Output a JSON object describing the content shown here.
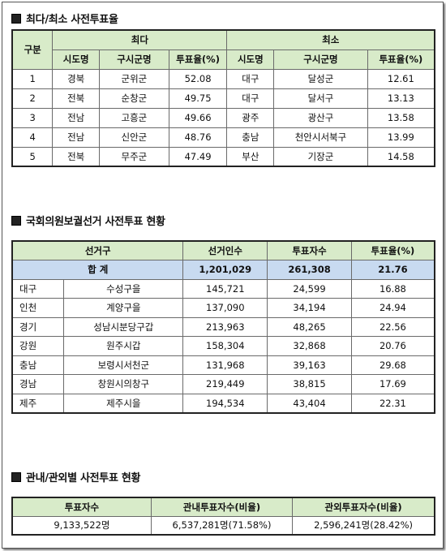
{
  "section1": {
    "title": "최다/최소 사전투표율",
    "col_category": "구분",
    "group_max": "최다",
    "group_min": "최소",
    "col_sido": "시도명",
    "col_sigungu": "구시군명",
    "col_rate": "투표율(%)",
    "rows": [
      {
        "rank": "1",
        "max_sido": "경북",
        "max_sigungu": "군위군",
        "max_rate": "52.08",
        "min_sido": "대구",
        "min_sigungu": "달성군",
        "min_rate": "12.61"
      },
      {
        "rank": "2",
        "max_sido": "전북",
        "max_sigungu": "순창군",
        "max_rate": "49.75",
        "min_sido": "대구",
        "min_sigungu": "달서구",
        "min_rate": "13.13"
      },
      {
        "rank": "3",
        "max_sido": "전남",
        "max_sigungu": "고흥군",
        "max_rate": "49.66",
        "min_sido": "광주",
        "min_sigungu": "광산구",
        "min_rate": "13.58"
      },
      {
        "rank": "4",
        "max_sido": "전남",
        "max_sigungu": "신안군",
        "max_rate": "48.76",
        "min_sido": "충남",
        "min_sigungu": "천안시서북구",
        "min_rate": "13.99"
      },
      {
        "rank": "5",
        "max_sido": "전북",
        "max_sigungu": "무주군",
        "max_rate": "47.49",
        "min_sido": "부산",
        "min_sigungu": "기장군",
        "min_rate": "14.58"
      }
    ]
  },
  "section2": {
    "title": "국회의원보궐선거 사전투표 현황",
    "col_district": "선거구",
    "col_electors": "선거인수",
    "col_voters": "투표자수",
    "col_rate": "투표율(%)",
    "total": {
      "label": "합 계",
      "electors": "1,201,029",
      "voters": "261,308",
      "rate": "21.76"
    },
    "rows": [
      {
        "region": "대구",
        "district": "수성구을",
        "electors": "145,721",
        "voters": "24,599",
        "rate": "16.88"
      },
      {
        "region": "인천",
        "district": "계양구을",
        "electors": "137,090",
        "voters": "34,194",
        "rate": "24.94"
      },
      {
        "region": "경기",
        "district": "성남시분당구갑",
        "electors": "213,963",
        "voters": "48,265",
        "rate": "22.56"
      },
      {
        "region": "강원",
        "district": "원주시갑",
        "electors": "158,304",
        "voters": "32,868",
        "rate": "20.76"
      },
      {
        "region": "충남",
        "district": "보령시서천군",
        "electors": "131,968",
        "voters": "39,163",
        "rate": "29.68"
      },
      {
        "region": "경남",
        "district": "창원시의창구",
        "electors": "219,449",
        "voters": "38,815",
        "rate": "17.69"
      },
      {
        "region": "제주",
        "district": "제주시을",
        "electors": "194,534",
        "voters": "43,404",
        "rate": "22.31"
      }
    ]
  },
  "section3": {
    "title": "관내/관외별 사전투표 현황",
    "col_voters": "투표자수",
    "col_inside": "관내투표자수(비율)",
    "col_outside": "관외투표자수(비율)",
    "row": {
      "voters": "9,133,522명",
      "inside": "6,537,281명(71.58%)",
      "outside": "2,596,241명(28.42%)"
    }
  }
}
